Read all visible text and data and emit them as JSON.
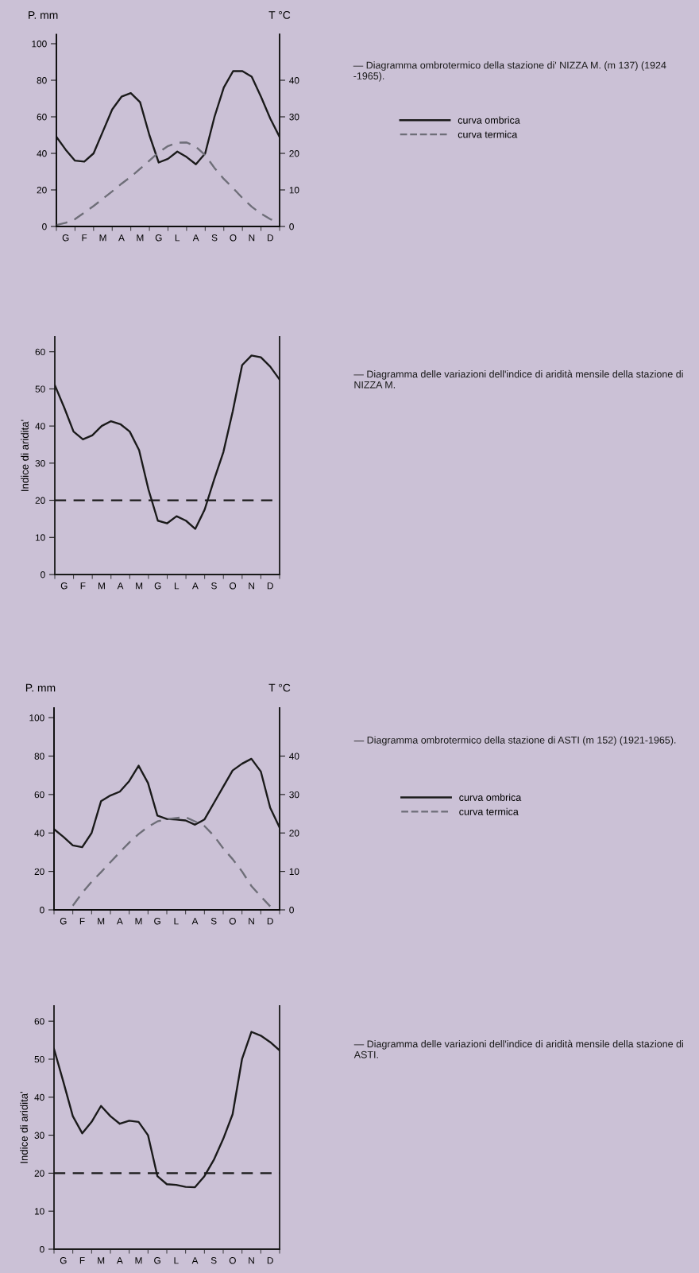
{
  "chart_data": [
    {
      "type": "line",
      "ylabel": "P. mm",
      "y2label": "T °C",
      "categories": [
        null,
        "G",
        null,
        "F",
        null,
        "M",
        null,
        "A",
        null,
        "M",
        null,
        "G",
        null,
        "L",
        null,
        "A",
        null,
        "S",
        null,
        "O",
        null,
        "N",
        null,
        "D",
        null
      ],
      "ylim": [
        0,
        105
      ],
      "yticks": [
        0,
        20,
        40,
        60,
        80,
        100
      ],
      "y2lim": [
        0,
        52.5
      ],
      "y2ticks": [
        0,
        10,
        20,
        30,
        40
      ],
      "legend": "right",
      "series": [
        {
          "name": "curva termica",
          "color": "#6e6e78",
          "line_style": "dashed",
          "axis": "y2",
          "values": [
            0.4,
            1,
            2,
            3.8,
            5.6,
            7.6,
            9.6,
            11.7,
            13.6,
            15.8,
            18,
            20.3,
            22,
            22.9,
            23,
            21.8,
            19.5,
            16,
            13,
            10.5,
            7.8,
            5.4,
            3.5,
            2,
            1
          ]
        },
        {
          "name": "curva ombrica",
          "color": "#1a1a1a",
          "line_style": "solid",
          "values": [
            49,
            42,
            36,
            35.5,
            40,
            52,
            64,
            71,
            73,
            68,
            50,
            35,
            37,
            41,
            38,
            34,
            40,
            60,
            76,
            85,
            85,
            82,
            71,
            59,
            49
          ]
        }
      ],
      "annotations": [
        "— Diagramma ombrotermico della stazione di' NIZZA M. (m 137) (1924 -1965)."
      ]
    },
    {
      "type": "line",
      "ylabel": "Indice di aridita'",
      "categories": [
        null,
        "G",
        null,
        "F",
        null,
        "M",
        null,
        "A",
        null,
        "M",
        null,
        "G",
        null,
        "L",
        null,
        "A",
        null,
        "S",
        null,
        "O",
        null,
        "N",
        null,
        "D",
        null
      ],
      "ylim": [
        0,
        64
      ],
      "yticks": [
        0,
        10,
        20,
        30,
        40,
        50,
        60
      ],
      "series": [
        {
          "color": "#1a1a1a",
          "line_style": "solid",
          "values": [
            51,
            45,
            38.5,
            36.4,
            37.5,
            40,
            41.3,
            40.5,
            38.5,
            33.5,
            22.9,
            14.5,
            13.8,
            15.7,
            14.5,
            12.3,
            17.5,
            25.5,
            33,
            44,
            56.4,
            59,
            58.5,
            56,
            52.5
          ]
        }
      ],
      "ref_lines": [
        {
          "axis": "y",
          "value": 20,
          "color": "#1a1a1a",
          "line_style": "dashed"
        }
      ],
      "annotations": [
        "— Diagramma delle variazioni dell'indice di aridità mensile della stazione di NIZZA M."
      ]
    },
    {
      "type": "line",
      "ylabel": "P. mm",
      "y2label": "T °C",
      "categories": [
        null,
        "G",
        null,
        "F",
        null,
        "M",
        null,
        "A",
        null,
        "M",
        null,
        "G",
        null,
        "L",
        null,
        "A",
        null,
        "S",
        null,
        "O",
        null,
        "N",
        null,
        "D",
        null
      ],
      "ylim": [
        0,
        105
      ],
      "yticks": [
        0,
        20,
        40,
        60,
        80,
        100
      ],
      "y2lim": [
        0,
        52.5
      ],
      "y2ticks": [
        0,
        10,
        20,
        30,
        40
      ],
      "legend": "right",
      "series": [
        {
          "name": "curva termica",
          "color": "#6e6e78",
          "line_style": "dashed",
          "axis": "y2",
          "values": [
            null,
            null,
            1.1,
            4.4,
            7.3,
            9.8,
            12.4,
            15,
            17.5,
            19.7,
            21.6,
            23,
            23.6,
            23.9,
            24.1,
            23,
            21.8,
            19.3,
            16,
            13.2,
            10,
            6.2,
            3.5,
            0.9,
            null
          ]
        },
        {
          "name": "curva ombrica",
          "color": "#1a1a1a",
          "line_style": "solid",
          "values": [
            42,
            38,
            33.5,
            32.6,
            40,
            56.5,
            59.5,
            61.5,
            67,
            75,
            66,
            49,
            47.3,
            47,
            46.5,
            44.3,
            47,
            55.5,
            64,
            72.5,
            76,
            78.6,
            72,
            53.1,
            42.8
          ]
        }
      ],
      "annotations": [
        "— Diagramma ombrotermico della stazione di ASTI (m 152) (1921-1965)."
      ]
    },
    {
      "type": "line",
      "ylabel": "Indice di aridita'",
      "categories": [
        null,
        "G",
        null,
        "F",
        null,
        "M",
        null,
        "A",
        null,
        "M",
        null,
        "G",
        null,
        "L",
        null,
        "A",
        null,
        "S",
        null,
        "O",
        null,
        "N",
        null,
        "D",
        null
      ],
      "ylim": [
        0,
        64
      ],
      "yticks": [
        0,
        10,
        20,
        30,
        40,
        50,
        60
      ],
      "series": [
        {
          "color": "#1a1a1a",
          "line_style": "solid",
          "values": [
            52.7,
            44,
            35,
            30.5,
            33.5,
            37.7,
            35,
            33,
            33.8,
            33.5,
            30,
            19.2,
            17.1,
            16.9,
            16.4,
            16.3,
            19.2,
            23.5,
            29,
            35.5,
            50,
            57.2,
            56.2,
            54.5,
            52.3
          ]
        }
      ],
      "ref_lines": [
        {
          "axis": "y",
          "value": 20,
          "color": "#1a1a1a",
          "line_style": "dashed"
        }
      ],
      "annotations": [
        "— Diagramma delle variazioni dell'indice di aridità mensile della stazione di ASTI."
      ]
    }
  ]
}
